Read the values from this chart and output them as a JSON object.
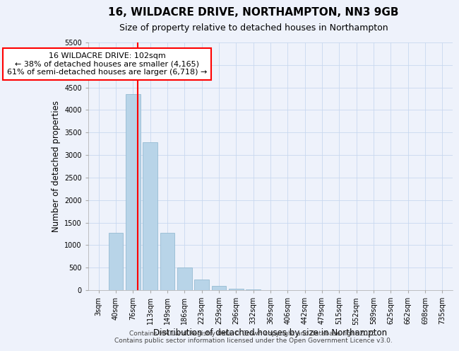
{
  "title": "16, WILDACRE DRIVE, NORTHAMPTON, NN3 9GB",
  "subtitle": "Size of property relative to detached houses in Northampton",
  "xlabel": "Distribution of detached houses by size in Northampton",
  "ylabel": "Number of detached properties",
  "bar_labels": [
    "3sqm",
    "40sqm",
    "76sqm",
    "113sqm",
    "149sqm",
    "186sqm",
    "223sqm",
    "259sqm",
    "296sqm",
    "332sqm",
    "369sqm",
    "406sqm",
    "442sqm",
    "479sqm",
    "515sqm",
    "552sqm",
    "589sqm",
    "625sqm",
    "662sqm",
    "698sqm",
    "735sqm"
  ],
  "bar_values": [
    0,
    1270,
    4360,
    3280,
    1280,
    500,
    240,
    90,
    30,
    10,
    5,
    2,
    1,
    0,
    0,
    0,
    0,
    0,
    0,
    0,
    0
  ],
  "bar_color": "#b8d4e8",
  "bar_edgecolor": "#8ab4cc",
  "background_color": "#eef2fb",
  "grid_color": "#c8d8f0",
  "vline_x": 2.27,
  "vline_color": "red",
  "annotation_text": "16 WILDACRE DRIVE: 102sqm\n← 38% of detached houses are smaller (4,165)\n61% of semi-detached houses are larger (6,718) →",
  "annotation_box_color": "white",
  "annotation_box_edgecolor": "red",
  "ylim": [
    0,
    5500
  ],
  "yticks": [
    0,
    500,
    1000,
    1500,
    2000,
    2500,
    3000,
    3500,
    4000,
    4500,
    5000,
    5500
  ],
  "footer1": "Contains HM Land Registry data © Crown copyright and database right 2025.",
  "footer2": "Contains public sector information licensed under the Open Government Licence v3.0.",
  "title_fontsize": 11,
  "subtitle_fontsize": 9,
  "axis_label_fontsize": 8.5,
  "tick_fontsize": 7,
  "annotation_fontsize": 8,
  "footer_fontsize": 6.5
}
